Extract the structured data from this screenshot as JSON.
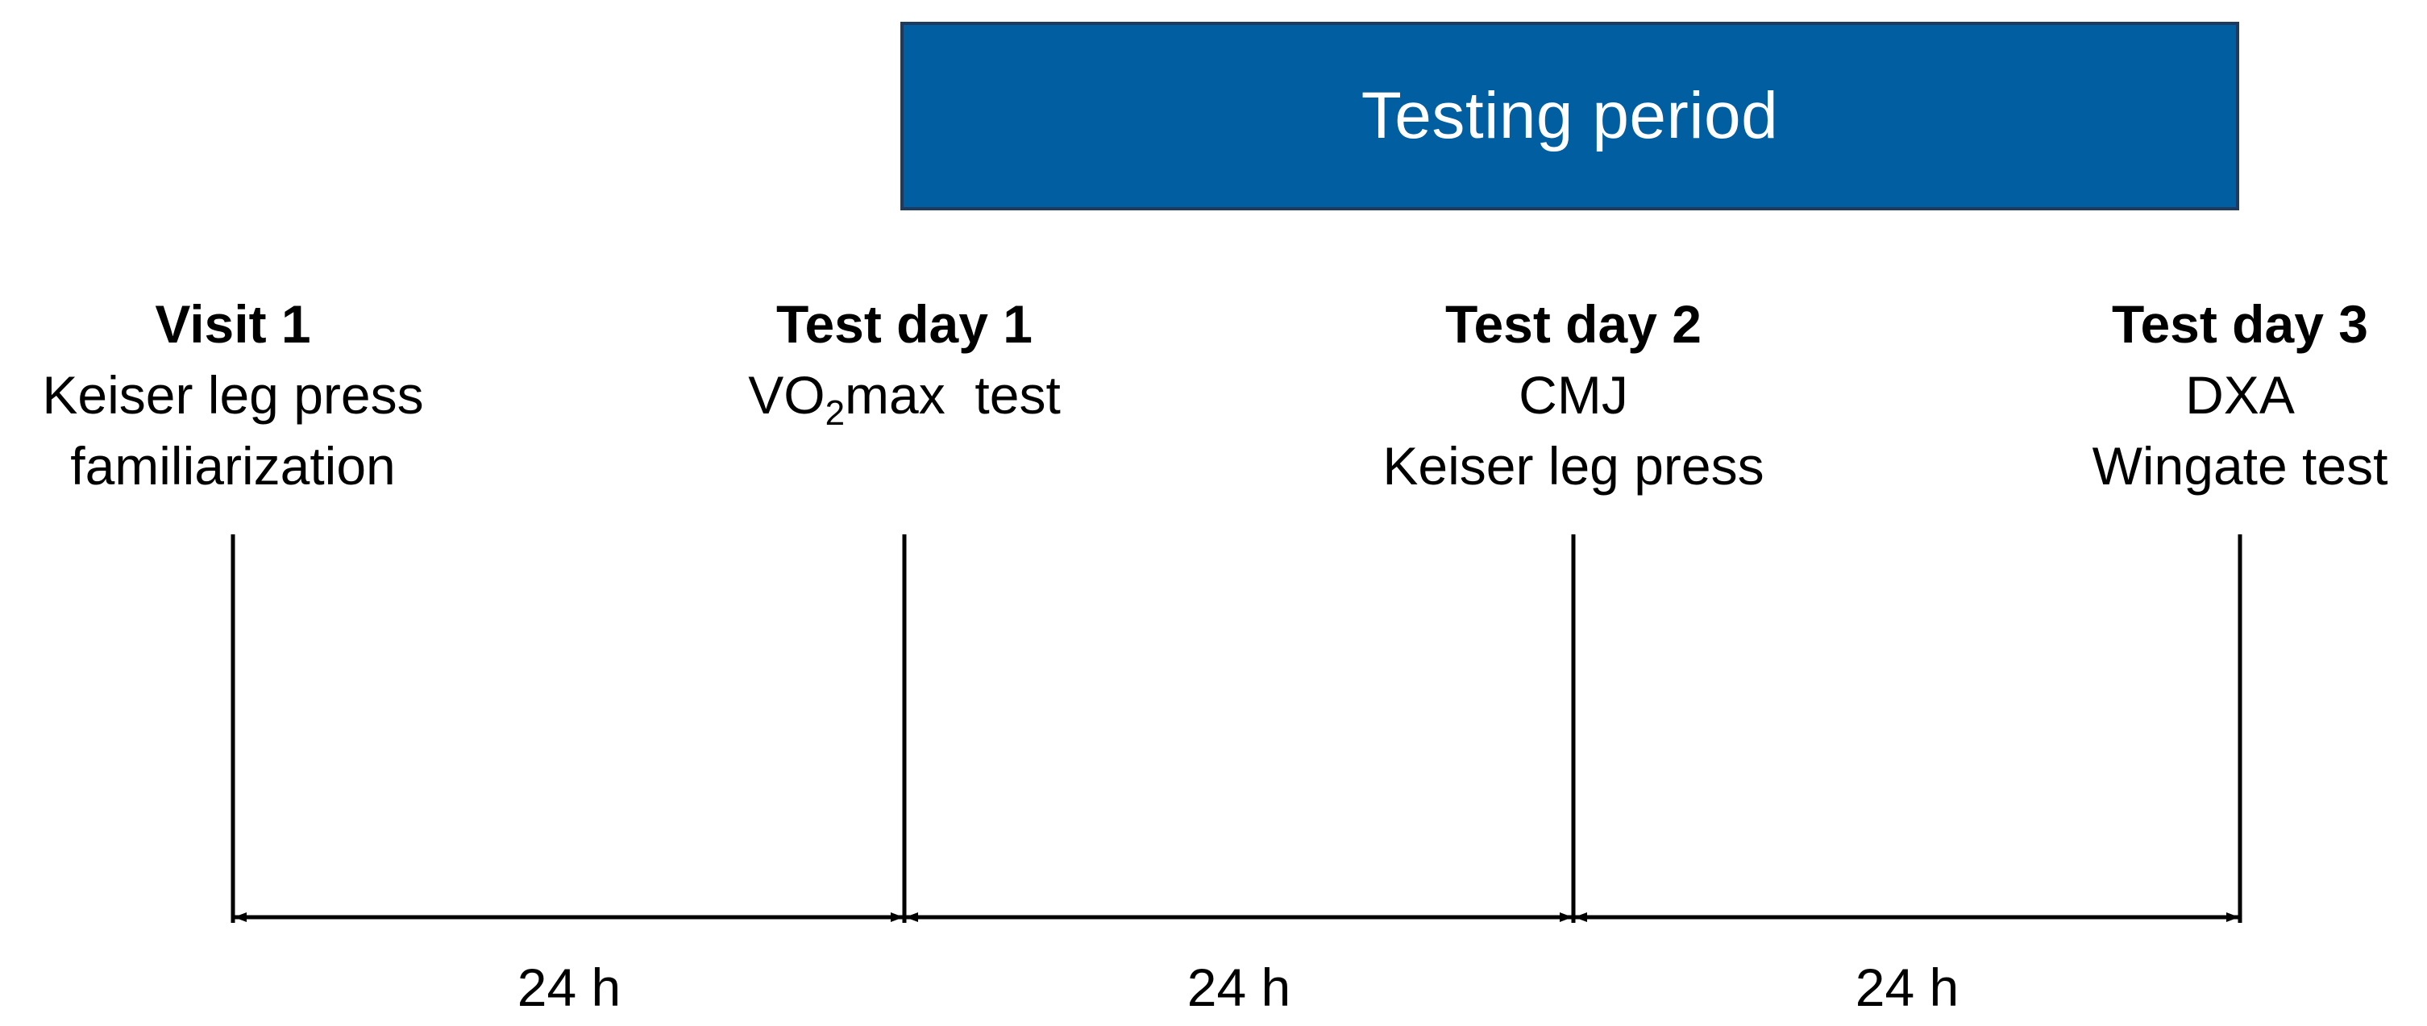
{
  "banner": {
    "label": "Testing period",
    "color": "#005ea1"
  },
  "visits": [
    {
      "title": "Visit 1",
      "lines": [
        "Keiser leg press",
        "familiarization"
      ]
    },
    {
      "title": "Test day 1",
      "lines": [
        "VO2max test"
      ],
      "line_parts": {
        "pre": "VO",
        "sub": "2",
        "post": "max  test"
      }
    },
    {
      "title": "Test day 2",
      "lines": [
        "CMJ",
        "Keiser leg press"
      ]
    },
    {
      "title": "Test day 3",
      "lines": [
        "DXA",
        "Wingate test"
      ]
    }
  ],
  "intervals": [
    {
      "label": "24 h"
    },
    {
      "label": "24 h"
    },
    {
      "label": "24 h"
    }
  ],
  "line_color": "#000000"
}
